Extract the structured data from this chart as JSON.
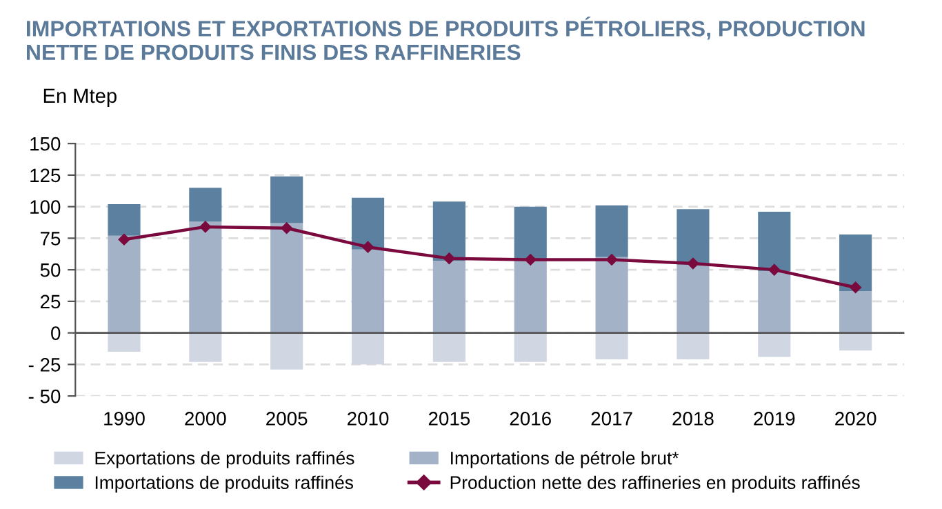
{
  "chart_data": {
    "type": "bar",
    "title": "IMPORTATIONS ET EXPORTATIONS DE PRODUITS PÉTROLIERS, PRODUCTION NETTE DE PRODUITS FINIS DES RAFFINERIES",
    "ylabel": "En Mtep",
    "categories": [
      "1990",
      "2000",
      "2005",
      "2010",
      "2015",
      "2016",
      "2017",
      "2018",
      "2019",
      "2020"
    ],
    "stacked": true,
    "series": [
      {
        "name": "Exportations de produits raffinés",
        "color": "#d0d6e2",
        "values": [
          -15,
          -23,
          -29,
          -25,
          -23,
          -23,
          -21,
          -21,
          -19,
          -14
        ]
      },
      {
        "name": "Importations de pétrole brut*",
        "color": "#a3b2c7",
        "values": [
          77,
          88,
          87,
          66,
          57,
          57,
          60,
          54,
          49,
          33
        ]
      },
      {
        "name": "Importations de produits raffinés",
        "color": "#5b80a0",
        "values": [
          25,
          27,
          37,
          41,
          47,
          43,
          41,
          44,
          47,
          45
        ]
      },
      {
        "name": "Production nette des raffineries en produits raffinés",
        "type": "line",
        "color": "#7a0a3e",
        "marker": "diamond",
        "values": [
          74,
          84,
          83,
          68,
          59,
          58,
          58,
          55,
          50,
          36
        ]
      }
    ],
    "ylim": [
      -50,
      150
    ],
    "yticks": [
      {
        "value": -50,
        "label": "- 50"
      },
      {
        "value": -25,
        "label": "- 25"
      },
      0,
      25,
      50,
      75,
      100,
      125,
      150
    ],
    "ref_lines": [
      {
        "axis": "y",
        "value": 0,
        "color": "#555555"
      }
    ],
    "grid": "y",
    "legend": "bottom"
  }
}
